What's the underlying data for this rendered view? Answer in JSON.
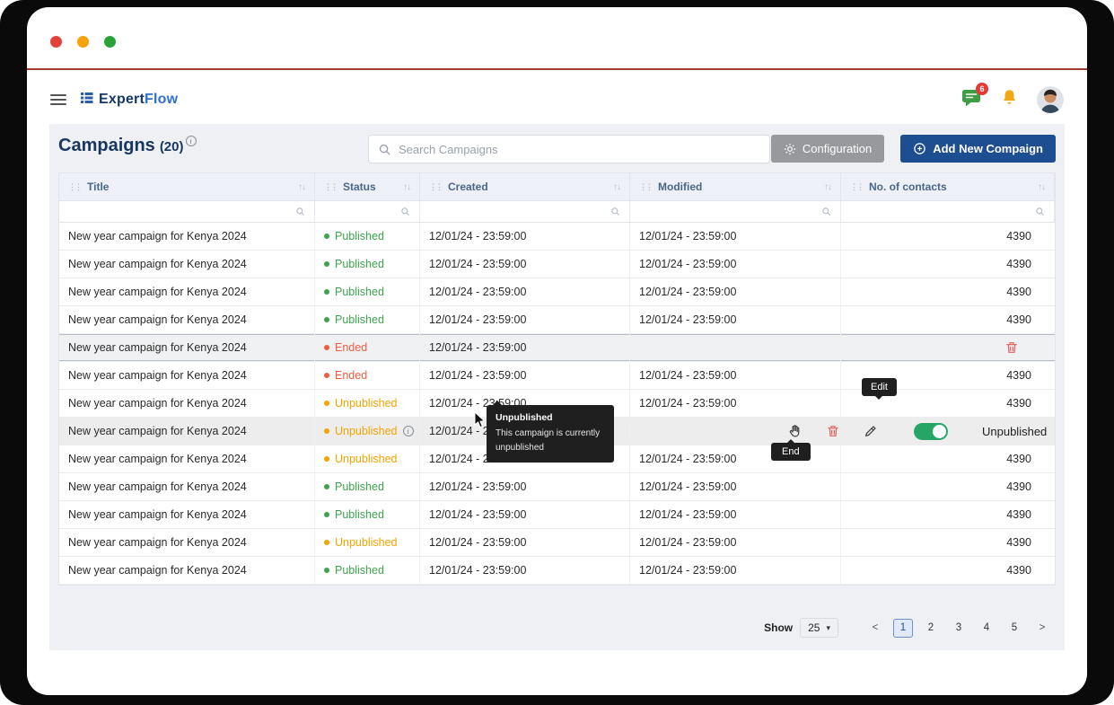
{
  "header": {
    "brand": {
      "part1": "Expert",
      "part2": "Flow"
    },
    "badge": "6"
  },
  "page": {
    "title": "Campaigns",
    "count": "(20)",
    "search_placeholder": "Search Campaigns",
    "config_label": "Configuration",
    "add_label": "Add New Compaign"
  },
  "icons": {
    "drag": "⋮⋮",
    "sort": "↑↓",
    "caret": "▾",
    "info": "i"
  },
  "colors": {
    "published": "#3da44d",
    "ended": "#f15b40",
    "unpublished": "#f5a300",
    "accent_blue": "#1c4e91",
    "toggle_green": "#27a567"
  },
  "table": {
    "columns": [
      "Title",
      "Status",
      "Created",
      "Modified",
      "No. of contacts"
    ],
    "rows": [
      {
        "title": "New year campaign for Kenya 2024",
        "status": "Published",
        "created": "12/01/24 - 23:59:00",
        "modified": "12/01/24 - 23:59:00",
        "contacts": "4390"
      },
      {
        "title": "New year campaign for Kenya 2024",
        "status": "Published",
        "created": "12/01/24 - 23:59:00",
        "modified": "12/01/24 - 23:59:00",
        "contacts": "4390"
      },
      {
        "title": "New year campaign for Kenya 2024",
        "status": "Published",
        "created": "12/01/24 - 23:59:00",
        "modified": "12/01/24 - 23:59:00",
        "contacts": "4390"
      },
      {
        "title": "New year campaign for Kenya 2024",
        "status": "Published",
        "created": "12/01/24 - 23:59:00",
        "modified": "12/01/24 - 23:59:00",
        "contacts": "4390"
      },
      {
        "title": "New year campaign for Kenya 2024",
        "status": "Ended",
        "created": "12/01/24 - 23:59:00",
        "modified": "",
        "contacts": "",
        "highlighted": true,
        "delete_only": true
      },
      {
        "title": "New year campaign for Kenya 2024",
        "status": "Ended",
        "created": "12/01/24 - 23:59:00",
        "modified": "12/01/24 - 23:59:00",
        "contacts": "4390"
      },
      {
        "title": "New year campaign for Kenya 2024",
        "status": "Unpublished",
        "created": "12/01/24 - 23:59:00",
        "modified": "12/01/24 - 23:59:00",
        "contacts": "4390"
      },
      {
        "title": "New year campaign for Kenya 2024",
        "status": "Unpublished",
        "created": "12/01/24 - 23:59:00",
        "modified": "",
        "contacts": "",
        "info": true,
        "hover": true,
        "toggle_label": "Unpublished"
      },
      {
        "title": "New year campaign for Kenya 2024",
        "status": "Unpublished",
        "created": "12/01/24 - 23:59:00",
        "modified": "12/01/24 - 23:59:00",
        "contacts": "4390"
      },
      {
        "title": "New year campaign for Kenya 2024",
        "status": "Published",
        "created": "12/01/24 - 23:59:00",
        "modified": "12/01/24 - 23:59:00",
        "contacts": "4390"
      },
      {
        "title": "New year campaign for Kenya 2024",
        "status": "Published",
        "created": "12/01/24 - 23:59:00",
        "modified": "12/01/24 - 23:59:00",
        "contacts": "4390"
      },
      {
        "title": "New year campaign for Kenya 2024",
        "status": "Unpublished",
        "created": "12/01/24 - 23:59:00",
        "modified": "12/01/24 - 23:59:00",
        "contacts": "4390"
      },
      {
        "title": "New year campaign for Kenya 2024",
        "status": "Published",
        "created": "12/01/24 - 23:59:00",
        "modified": "12/01/24 - 23:59:00",
        "contacts": "4390"
      }
    ]
  },
  "tooltips": {
    "edit": "Edit",
    "end": "End",
    "status_title": "Unpublished",
    "status_body": "This campaign is currently unpublished"
  },
  "pagination": {
    "show_label": "Show",
    "size": "25",
    "prev": "<",
    "next": ">",
    "pages": [
      "1",
      "2",
      "3",
      "4",
      "5"
    ],
    "active": "1"
  }
}
